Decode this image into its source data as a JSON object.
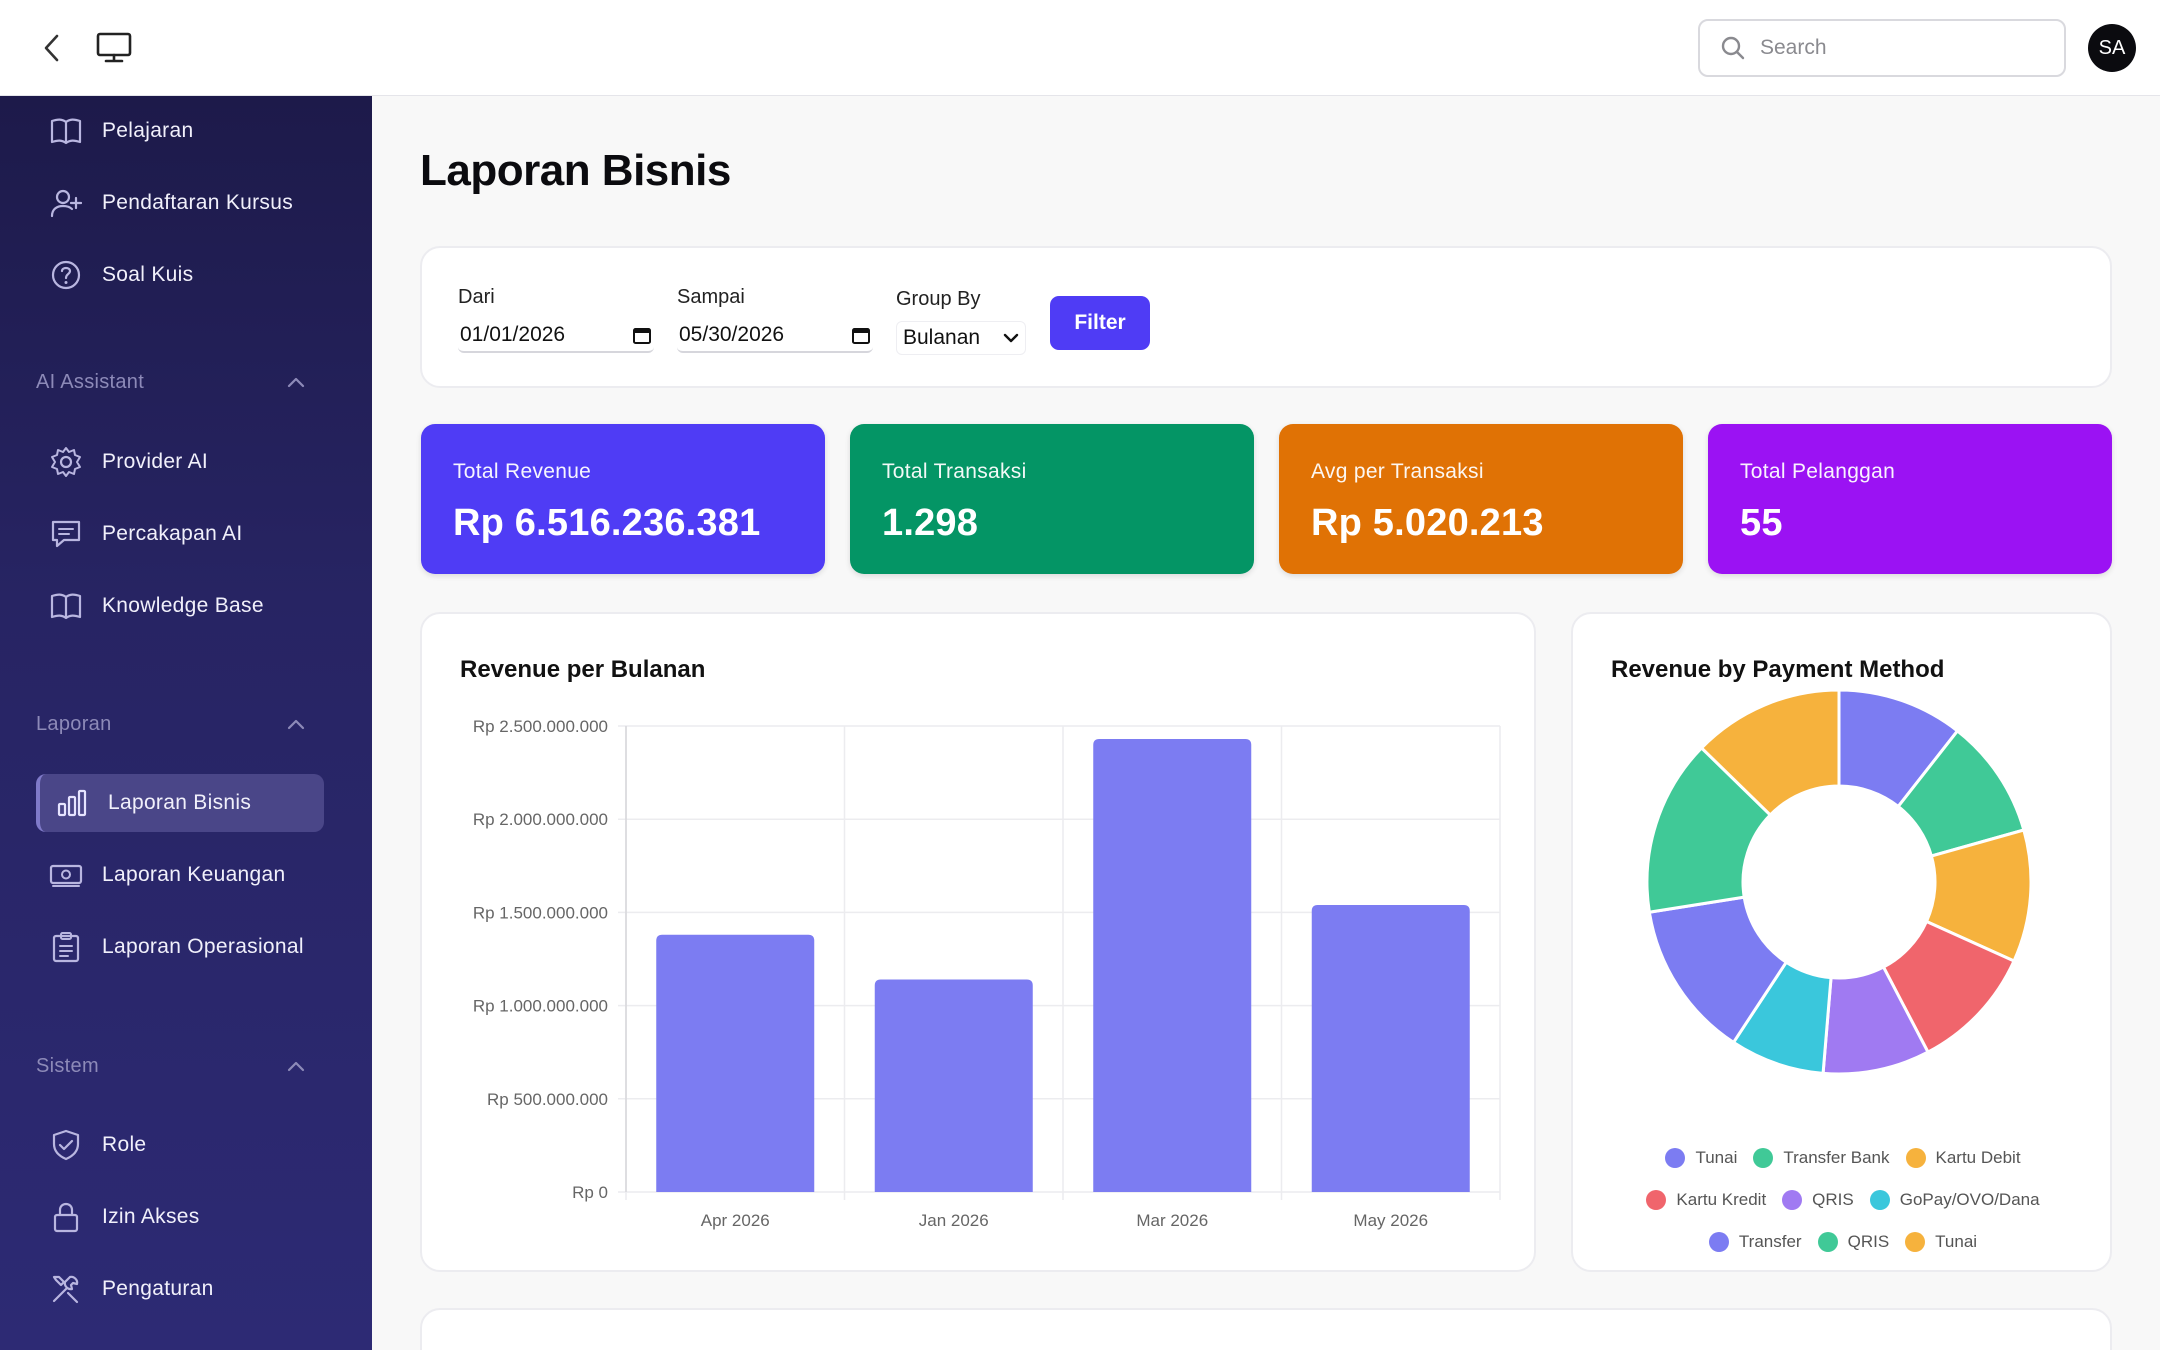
{
  "topbar": {
    "search_placeholder": "Search",
    "avatar_initials": "SA"
  },
  "sidebar": {
    "items_top": [
      {
        "label": "Pelajaran",
        "icon": "book-icon"
      },
      {
        "label": "Pendaftaran Kursus",
        "icon": "user-plus-icon"
      },
      {
        "label": "Soal Kuis",
        "icon": "question-icon"
      }
    ],
    "sections": [
      {
        "title": "AI Assistant",
        "items": [
          {
            "label": "Provider AI",
            "icon": "gear-icon"
          },
          {
            "label": "Percakapan AI",
            "icon": "chat-icon"
          },
          {
            "label": "Knowledge Base",
            "icon": "book-icon"
          }
        ]
      },
      {
        "title": "Laporan",
        "items": [
          {
            "label": "Laporan Bisnis",
            "icon": "bar-chart-icon",
            "active": true
          },
          {
            "label": "Laporan Keuangan",
            "icon": "money-icon"
          },
          {
            "label": "Laporan Operasional",
            "icon": "clipboard-icon"
          }
        ]
      },
      {
        "title": "Sistem",
        "items": [
          {
            "label": "Role",
            "icon": "shield-check-icon"
          },
          {
            "label": "Izin Akses",
            "icon": "lock-icon"
          },
          {
            "label": "Pengaturan",
            "icon": "tools-icon"
          }
        ]
      }
    ]
  },
  "page": {
    "title": "Laporan Bisnis"
  },
  "filter": {
    "from_label": "Dari",
    "from_value": "01/01/2026",
    "to_label": "Sampai",
    "to_value": "05/30/2026",
    "group_label": "Group By",
    "group_value": "Bulanan",
    "button_label": "Filter"
  },
  "stats": [
    {
      "label": "Total Revenue",
      "value": "Rp 6.516.236.381",
      "color": "#4f3cf5"
    },
    {
      "label": "Total Transaksi",
      "value": "1.298",
      "color": "#049565"
    },
    {
      "label": "Avg per Transaksi",
      "value": "Rp 5.020.213",
      "color": "#e07205"
    },
    {
      "label": "Total Pelanggan",
      "value": "55",
      "color": "#9b12f3"
    }
  ],
  "chart_data": [
    {
      "type": "bar",
      "title": "Revenue per Bulanan",
      "categories": [
        "Apr 2026",
        "Jan 2026",
        "Mar 2026",
        "May 2026"
      ],
      "values": [
        1380000000,
        1140000000,
        2430000000,
        1540000000
      ],
      "ylim": [
        0,
        2500000000
      ],
      "yticks": [
        "Rp 0",
        "Rp 500.000.000",
        "Rp 1.000.000.000",
        "Rp 1.500.000.000",
        "Rp 2.000.000.000",
        "Rp 2.500.000.000"
      ],
      "ytick_values": [
        0,
        500000000,
        1000000000,
        1500000000,
        2000000000,
        2500000000
      ],
      "grid": true,
      "color": "#7c7cf2"
    },
    {
      "type": "pie",
      "title": "Revenue by Payment Method",
      "labels": [
        "Tunai",
        "Transfer Bank",
        "Kartu Debit",
        "Kartu Kredit",
        "QRIS",
        "GoPay/OVO/Dana",
        "Transfer",
        "QRIS",
        "Tunai"
      ],
      "values": [
        10,
        9.5,
        10.5,
        10,
        8.5,
        7.5,
        12.5,
        14,
        12
      ],
      "colors": [
        "#7c7cf2",
        "#40c997",
        "#f6b23d",
        "#f0656c",
        "#a07af2",
        "#3ac7dc",
        "#7c7cf2",
        "#40c997",
        "#f6b23d"
      ],
      "hole": true,
      "legend": "bottom"
    }
  ]
}
